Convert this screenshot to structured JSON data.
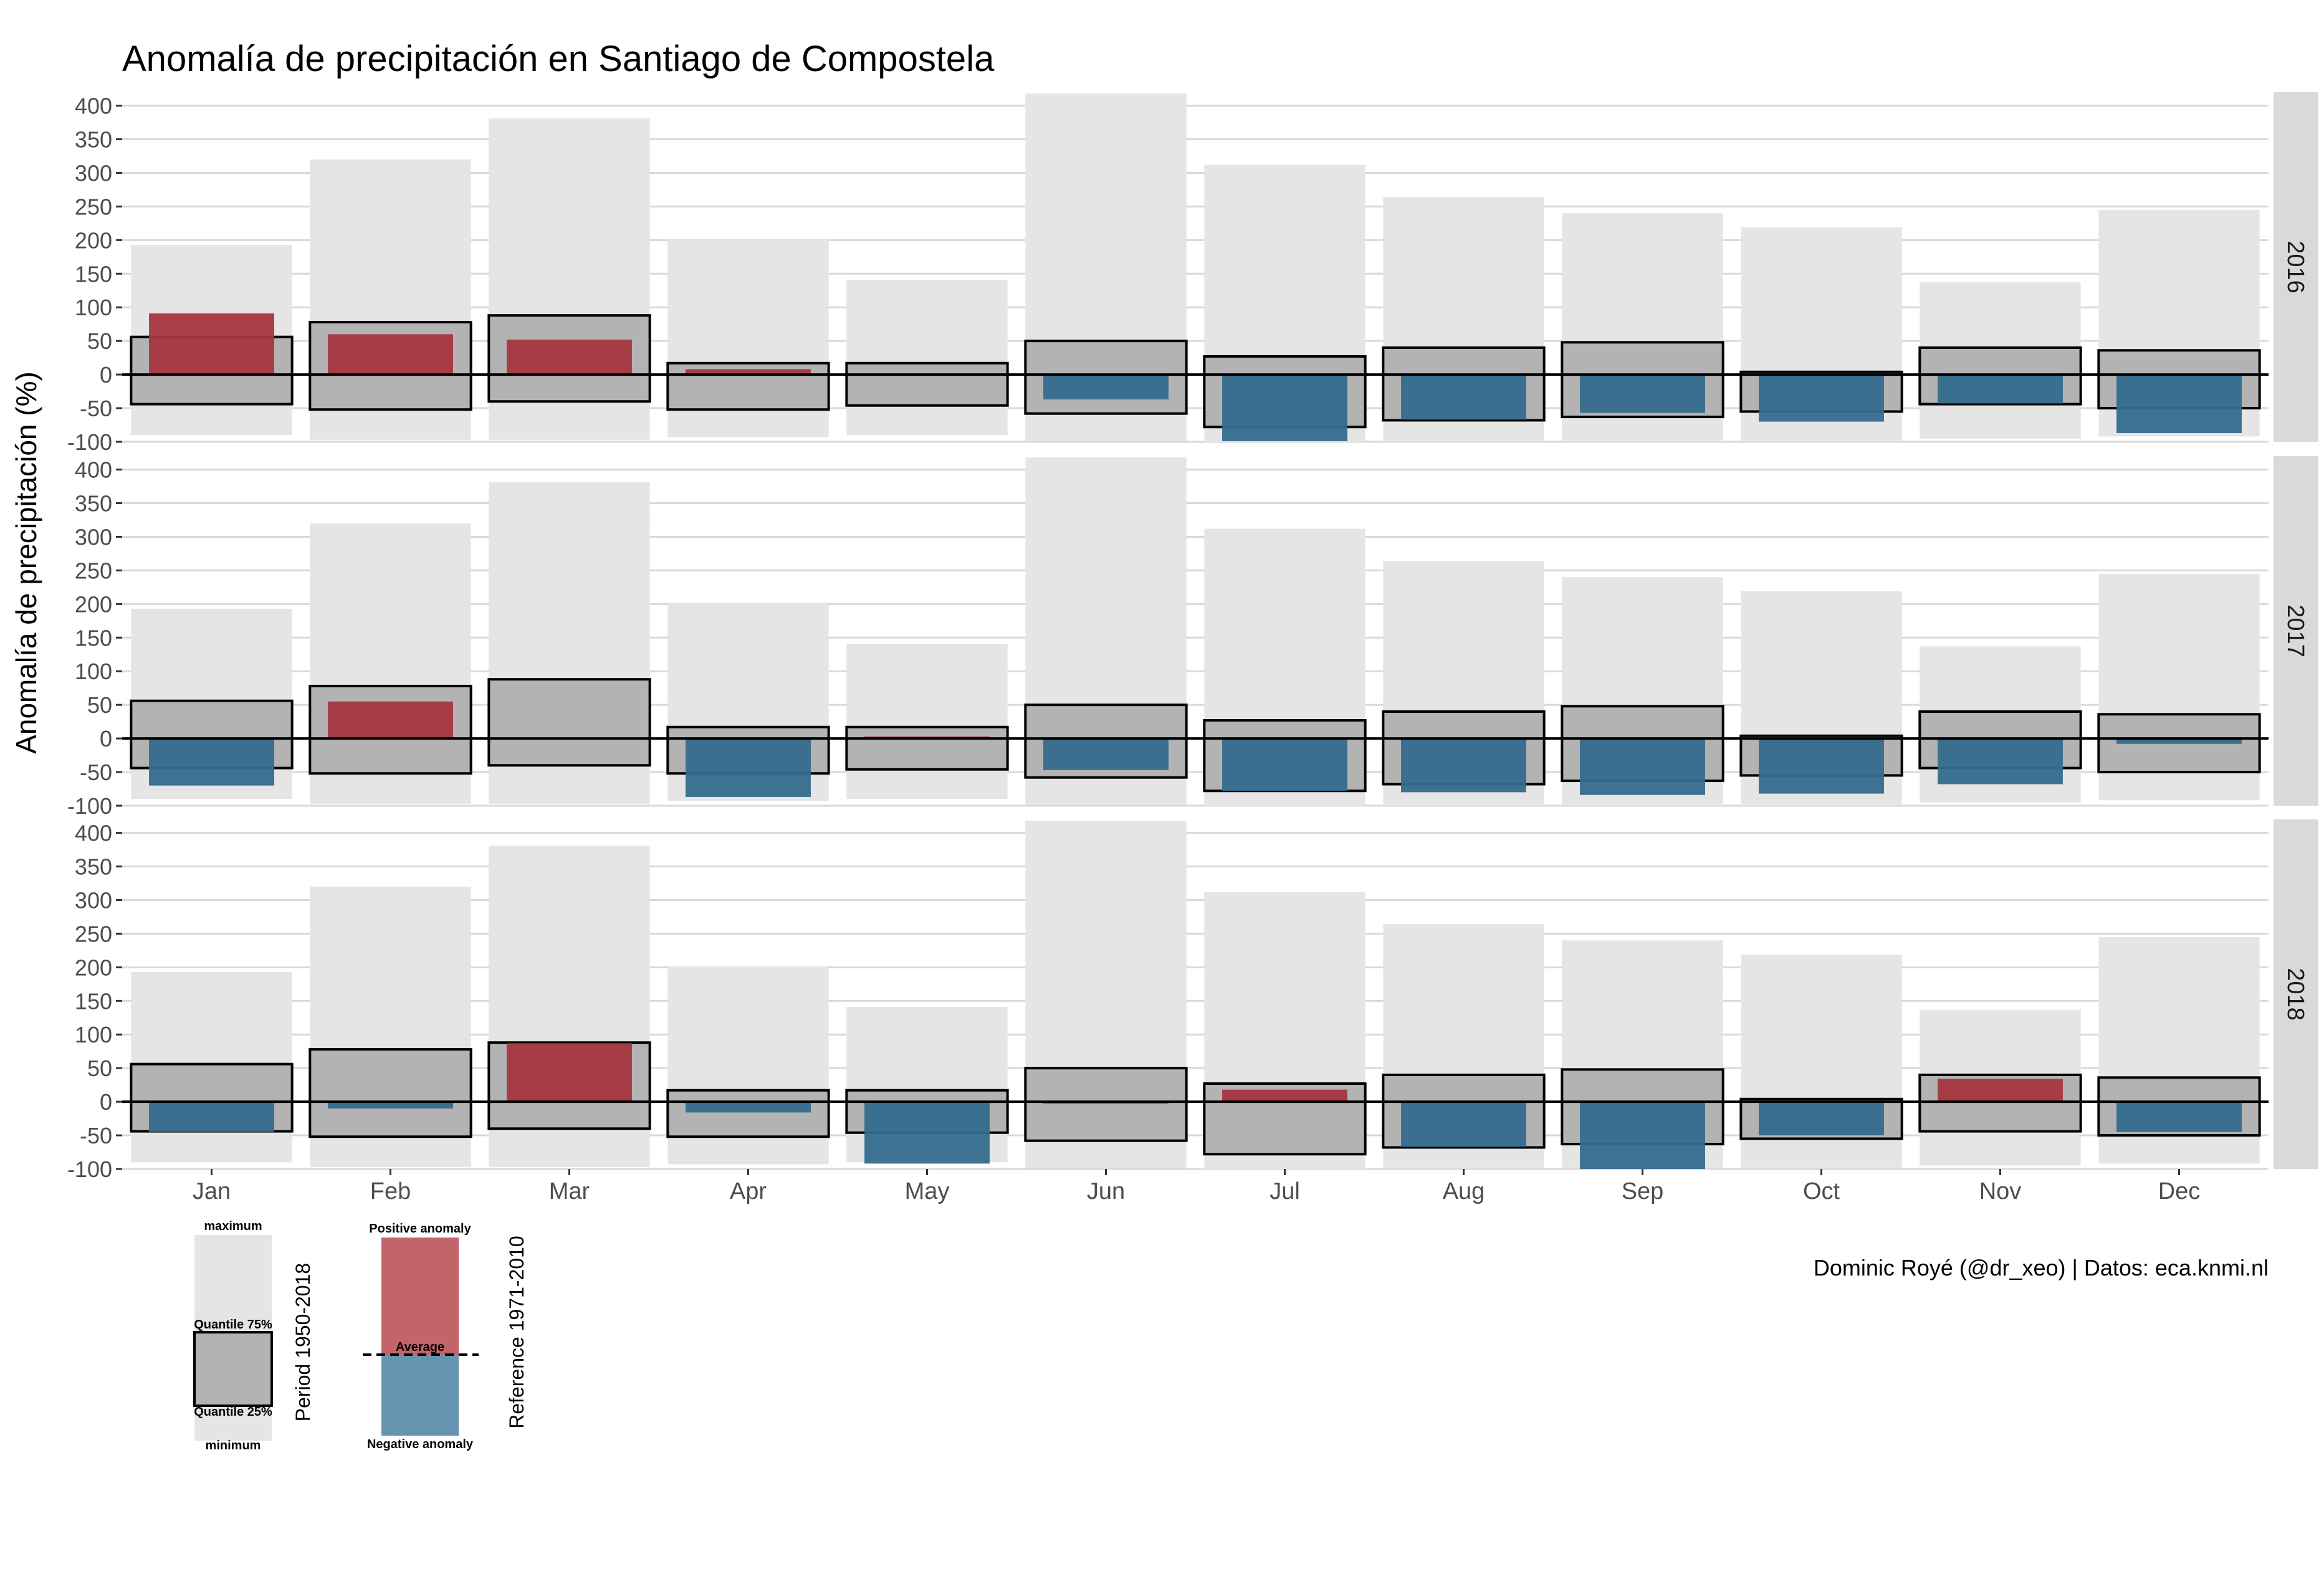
{
  "chart_data": {
    "type": "bar",
    "title": "Anomalía de precipitación en Santiago de Compostela",
    "xlabel": "",
    "ylabel": "Anomalía de precipitación (%)",
    "ylim": [
      -100,
      420
    ],
    "yticks": [
      "400",
      "350",
      "300",
      "250",
      "200",
      "150",
      "100",
      "50",
      "0",
      "-50",
      "-100"
    ],
    "ytick_values": [
      400,
      350,
      300,
      250,
      200,
      150,
      100,
      50,
      0,
      -50,
      -100
    ],
    "categories": [
      "Jan",
      "Feb",
      "Mar",
      "Apr",
      "May",
      "Jun",
      "Jul",
      "Aug",
      "Sep",
      "Oct",
      "Nov",
      "Dec"
    ],
    "climatology": {
      "period": "Period 1950-2018",
      "maximum": [
        193,
        320,
        381,
        201,
        141,
        418,
        312,
        264,
        240,
        219,
        137,
        245
      ],
      "quantile_75": [
        56,
        78,
        88,
        17,
        17,
        50,
        27,
        40,
        48,
        4,
        40,
        36
      ],
      "quantile_25": [
        -44,
        -52,
        -40,
        -52,
        -46,
        -58,
        -78,
        -68,
        -63,
        -55,
        -44,
        -50
      ],
      "minimum": [
        -90,
        -97,
        -97,
        -93,
        -90,
        -99,
        -100,
        -98,
        -98,
        -98,
        -95,
        -92
      ]
    },
    "facets": [
      {
        "year": "2016",
        "anomaly": [
          91,
          60,
          52,
          8,
          0,
          -37,
          -99,
          -67,
          -57,
          -70,
          -43,
          -87
        ]
      },
      {
        "year": "2017",
        "anomaly": [
          -70,
          55,
          0,
          -87,
          3,
          -47,
          -78,
          -80,
          -84,
          -82,
          -68,
          -8
        ]
      },
      {
        "year": "2018",
        "anomaly": [
          -45,
          -10,
          87,
          -16,
          -92,
          -3,
          18,
          -67,
          -100,
          -50,
          34,
          -45
        ]
      }
    ],
    "reference": "Reference 1971-2010",
    "legend": {
      "position": "bottom-left",
      "box_labels": [
        "maximum",
        "Quantile 75%",
        "Quantile 25%",
        "minimum"
      ],
      "anomaly_labels": [
        "Positive anomaly",
        "Average",
        "Negative anomaly"
      ]
    },
    "caption": "Dominic Royé (@dr_xeo) | Datos: eca.knmi.nl",
    "grid": true
  },
  "colors": {
    "panel_bg": "#ffffff",
    "grid": "#d9d9d9",
    "extreme_bar": "#e5e5e5",
    "quartile_box": "#b3b3b3",
    "positive": "#a73540",
    "negative": "#346b8d",
    "positive_legend": "#c3646b",
    "negative_legend": "#6594b1",
    "strip": "#d9d9d9"
  }
}
